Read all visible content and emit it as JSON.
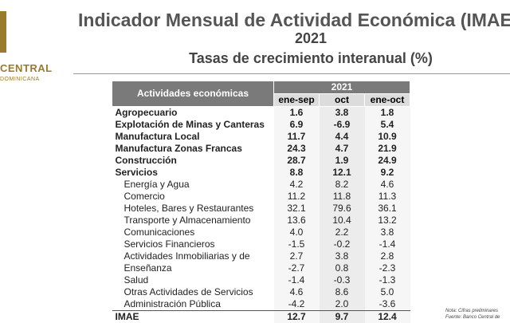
{
  "header": {
    "logo_text": "CENTRAL",
    "logo_sub": "DOMINICANA",
    "title": "Indicador Mensual de Actividad Económica (IMAE)",
    "year": "2021",
    "subtitle": "Tasas de crecimiento interanual (%)"
  },
  "table": {
    "col_header_activity": "Actividades económicas",
    "col_header_year": "2021",
    "columns": [
      "ene-sep",
      "oct",
      "ene-oct"
    ],
    "rows": [
      {
        "label": "Agropecuario",
        "values": [
          "1.6",
          "3.8",
          "1.8"
        ]
      },
      {
        "label": "Explotación de Minas y Canteras",
        "values": [
          "6.9",
          "-6.9",
          "5.4"
        ]
      },
      {
        "label": "Manufactura Local",
        "values": [
          "11.7",
          "4.4",
          "10.9"
        ]
      },
      {
        "label": "Manufactura Zonas Francas",
        "values": [
          "24.3",
          "4.7",
          "21.9"
        ]
      },
      {
        "label": "Construcción",
        "values": [
          "28.7",
          "1.9",
          "24.9"
        ]
      },
      {
        "label": "Servicios",
        "values": [
          "8.8",
          "12.1",
          "9.2"
        ]
      },
      {
        "label": "Energía y Agua",
        "values": [
          "4.2",
          "8.2",
          "4.6"
        ]
      },
      {
        "label": "Comercio",
        "values": [
          "11.2",
          "11.8",
          "11.3"
        ]
      },
      {
        "label": "Hoteles, Bares y Restaurantes",
        "values": [
          "32.1",
          "79.6",
          "36.1"
        ]
      },
      {
        "label": "Transporte y Almacenamiento",
        "values": [
          "13.6",
          "10.4",
          "13.2"
        ]
      },
      {
        "label": "Comunicaciones",
        "values": [
          "4.0",
          "2.2",
          "3.8"
        ]
      },
      {
        "label": "Servicios Financieros",
        "values": [
          "-1.5",
          "-0.2",
          "-1.4"
        ]
      },
      {
        "label": "Actividades Inmobiliarias y de",
        "values": [
          "2.7",
          "3.8",
          "2.8"
        ]
      },
      {
        "label": "Enseñanza",
        "values": [
          "-2.7",
          "0.8",
          "-2.3"
        ]
      },
      {
        "label": "Salud",
        "values": [
          "-1.4",
          "-0.3",
          "-1.3"
        ]
      },
      {
        "label": "Otras Actividades de Servicios",
        "values": [
          "4.6",
          "8.6",
          "5.0"
        ]
      },
      {
        "label": "Administración Pública",
        "values": [
          "-4.2",
          "2.0",
          "-3.6"
        ]
      },
      {
        "label": "IMAE",
        "values": [
          "12.7",
          "9.7",
          "12.4"
        ]
      }
    ]
  },
  "notes": {
    "note": "Nota: Cifras preliminares",
    "source": "Fuente: Banco Central de"
  }
}
